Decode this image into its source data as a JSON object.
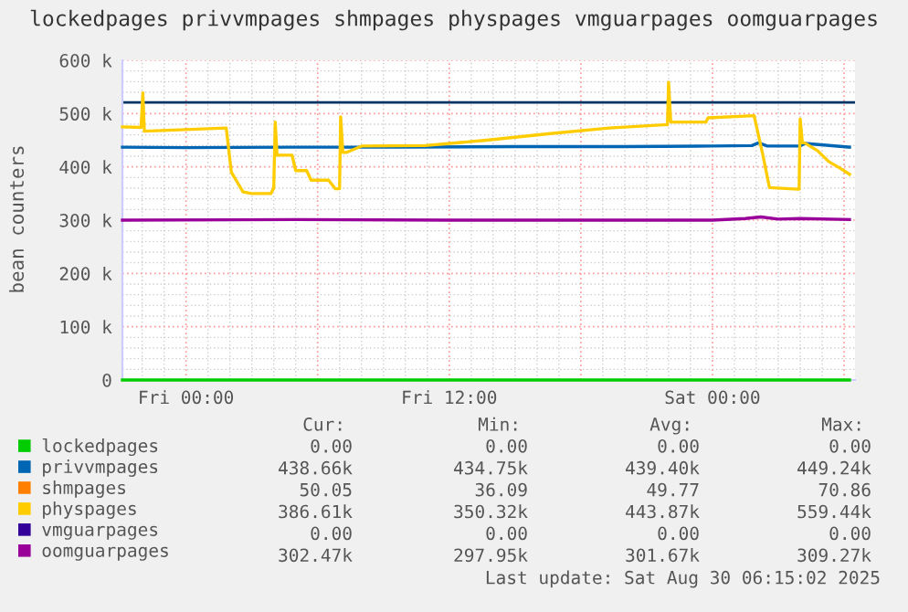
{
  "chart_data": {
    "type": "line",
    "title": "lockedpages privvmpages shmpages physpages vmguarpages oomguarpages",
    "ylabel": "bean counters",
    "xlim": [
      "2025-08-28T21:06",
      "2025-08-30T06:30"
    ],
    "xticks": [
      {
        "value": "2025-08-29T00:00",
        "label": "Fri 00:00"
      },
      {
        "value": "2025-08-29T06:00",
        "label": null
      },
      {
        "value": "2025-08-29T12:00",
        "label": "Fri 12:00"
      },
      {
        "value": "2025-08-29T18:00",
        "label": null
      },
      {
        "value": "2025-08-30T00:00",
        "label": "Sat 00:00"
      },
      {
        "value": "2025-08-30T06:00",
        "label": null
      }
    ],
    "ylim": [
      0,
      600000
    ],
    "yticks": [
      {
        "value": 0,
        "label": "0"
      },
      {
        "value": 100000,
        "label": "100 k"
      },
      {
        "value": 200000,
        "label": "200 k"
      },
      {
        "value": 300000,
        "label": "300 k"
      },
      {
        "value": 400000,
        "label": "400 k"
      },
      {
        "value": 500000,
        "label": "500 k"
      },
      {
        "value": 600000,
        "label": "600 k"
      }
    ],
    "grid": true,
    "legend": "bottom",
    "ref_lines": [
      {
        "axis": "y",
        "value": 521000,
        "label": null,
        "color": "#003366"
      }
    ],
    "series": [
      {
        "name": "lockedpages",
        "color": "#00cc00",
        "x": [
          "2025-08-28T21:06",
          "2025-08-30T06:15"
        ],
        "values": [
          0,
          0
        ]
      },
      {
        "name": "privvmpages",
        "color": "#0066b3",
        "x": [
          "2025-08-28T21:06",
          "2025-08-29T00:00",
          "2025-08-29T05:00",
          "2025-08-29T10:00",
          "2025-08-29T15:00",
          "2025-08-29T20:00",
          "2025-08-30T00:00",
          "2025-08-30T01:48",
          "2025-08-30T02:06",
          "2025-08-30T02:30",
          "2025-08-30T04:00",
          "2025-08-30T04:12",
          "2025-08-30T06:15"
        ],
        "values": [
          437000,
          436000,
          437000,
          437000,
          438000,
          438000,
          439000,
          440000,
          445000,
          439000,
          439000,
          444000,
          437000
        ]
      },
      {
        "name": "shmpages",
        "color": "#ff8000"
      },
      {
        "name": "physpages",
        "color": "#ffcc00",
        "x": [
          "2025-08-28T21:06",
          "2025-08-28T21:57",
          "2025-08-28T22:02",
          "2025-08-28T22:06",
          "2025-08-29T01:50",
          "2025-08-29T02:04",
          "2025-08-29T02:36",
          "2025-08-29T03:00",
          "2025-08-29T03:52",
          "2025-08-29T04:00",
          "2025-08-29T04:04",
          "2025-08-29T04:09",
          "2025-08-29T04:50",
          "2025-08-29T05:00",
          "2025-08-29T05:30",
          "2025-08-29T05:42",
          "2025-08-29T06:30",
          "2025-08-29T06:48",
          "2025-08-29T07:00",
          "2025-08-29T07:03",
          "2025-08-29T07:09",
          "2025-08-29T07:18",
          "2025-08-29T08:00",
          "2025-08-29T10:54",
          "2025-08-29T13:42",
          "2025-08-29T16:30",
          "2025-08-29T19:18",
          "2025-08-29T21:48",
          "2025-08-29T21:57",
          "2025-08-29T22:00",
          "2025-08-29T22:06",
          "2025-08-29T23:42",
          "2025-08-29T23:48",
          "2025-08-30T01:54",
          "2025-08-30T02:18",
          "2025-08-30T02:36",
          "2025-08-30T03:54",
          "2025-08-30T03:57",
          "2025-08-30T04:00",
          "2025-08-30T04:06",
          "2025-08-30T04:12",
          "2025-08-30T04:48",
          "2025-08-30T05:18",
          "2025-08-30T05:48",
          "2025-08-30T06:15"
        ],
        "values": [
          475000,
          474000,
          539000,
          467000,
          473000,
          390000,
          353000,
          350000,
          350000,
          360000,
          484000,
          422000,
          422000,
          393000,
          393000,
          375000,
          375000,
          359000,
          359000,
          494000,
          427000,
          427000,
          439000,
          440000,
          450000,
          462000,
          473000,
          479000,
          479000,
          559000,
          484000,
          484000,
          492000,
          496000,
          422000,
          361000,
          358000,
          358000,
          490000,
          445000,
          445000,
          430000,
          410000,
          398000,
          386000
        ]
      },
      {
        "name": "vmguarpages",
        "color": "#330099"
      },
      {
        "name": "oomguarpages",
        "color": "#990099",
        "x": [
          "2025-08-28T21:06",
          "2025-08-29T05:00",
          "2025-08-29T12:00",
          "2025-08-29T20:00",
          "2025-08-30T00:00",
          "2025-08-30T01:30",
          "2025-08-30T02:12",
          "2025-08-30T03:00",
          "2025-08-30T04:00",
          "2025-08-30T06:15"
        ],
        "values": [
          300000,
          301000,
          300000,
          300000,
          300000,
          303000,
          306000,
          302000,
          303000,
          301000
        ]
      }
    ],
    "annotations": [
      "Cur:",
      "Min:",
      "Avg:",
      "Max:",
      "0.00",
      "0.00",
      "0.00",
      "0.00",
      "438.66k",
      "434.75k",
      "439.40k",
      "449.24k",
      "50.05",
      "36.09",
      "49.77",
      "70.86",
      "386.61k",
      "350.32k",
      "443.87k",
      "559.44k",
      "0.00",
      "0.00",
      "0.00",
      "0.00",
      "302.47k",
      "297.95k",
      "301.67k",
      "309.27k",
      "Last update: Sat Aug 30 06:15:02 2025"
    ]
  }
}
